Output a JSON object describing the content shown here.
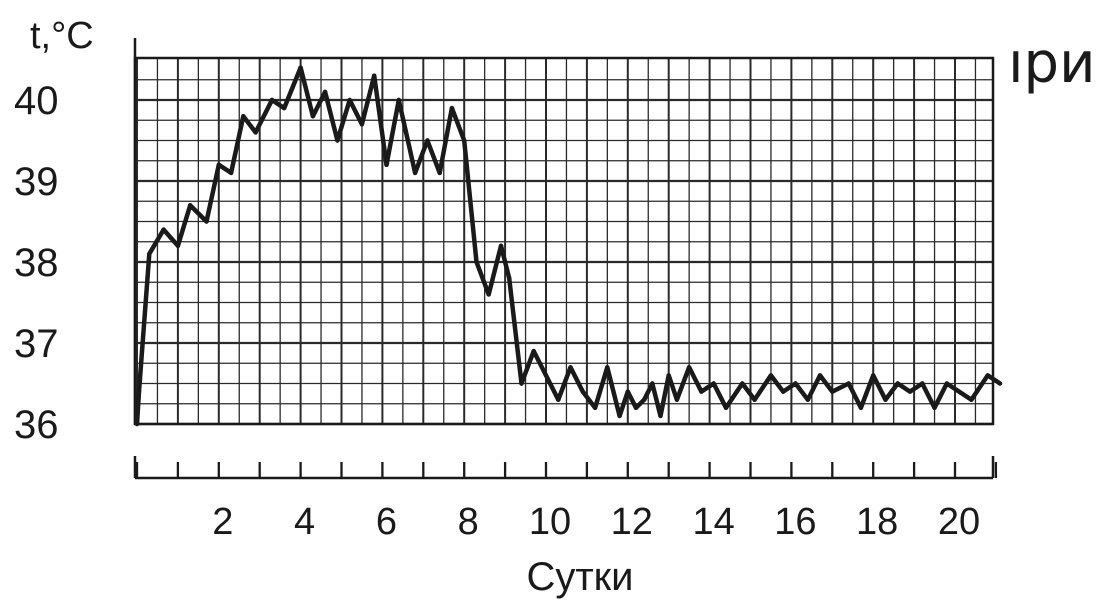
{
  "side_text": "ıри",
  "chart_data": {
    "type": "line",
    "ylabel": "t,°C",
    "xlabel": "Сутки",
    "xlim": [
      0,
      21.3
    ],
    "ylim": [
      36,
      40.4
    ],
    "x_ticks": [
      0,
      1,
      2,
      3,
      4,
      5,
      6,
      7,
      8,
      9,
      10,
      11,
      12,
      13,
      14,
      15,
      16,
      17,
      18,
      19,
      20,
      21
    ],
    "x_tick_labels": [
      "2",
      "4",
      "6",
      "8",
      "10",
      "12",
      "14",
      "16",
      "18",
      "20"
    ],
    "x_tick_label_values": [
      2,
      4,
      6,
      8,
      10,
      12,
      14,
      16,
      18,
      20
    ],
    "y_tick_labels": [
      "36",
      "37",
      "38",
      "39",
      "40"
    ],
    "y_tick_values": [
      36,
      37,
      38,
      39,
      40
    ],
    "grid": true,
    "series": [
      {
        "color": "#1a1a1a",
        "x": [
          0,
          0.05,
          0.3,
          0.65,
          1.0,
          1.3,
          1.7,
          2.0,
          2.3,
          2.6,
          2.9,
          3.3,
          3.6,
          4.0,
          4.3,
          4.6,
          4.9,
          5.2,
          5.5,
          5.8,
          6.1,
          6.4,
          6.8,
          7.1,
          7.4,
          7.7,
          8.0,
          8.3,
          8.6,
          8.9,
          9.1,
          9.4,
          9.7,
          10.0,
          10.3,
          10.6,
          10.9,
          11.2,
          11.5,
          11.8,
          12.0,
          12.2,
          12.4,
          12.6,
          12.8,
          13.0,
          13.2,
          13.5,
          13.8,
          14.1,
          14.4,
          14.8,
          15.1,
          15.5,
          15.8,
          16.1,
          16.4,
          16.7,
          17.0,
          17.4,
          17.7,
          18.0,
          18.3,
          18.6,
          18.9,
          19.2,
          19.5,
          19.8,
          20.1,
          20.4,
          20.8,
          21.1
        ],
        "y": [
          36.0,
          36.4,
          38.1,
          38.4,
          38.2,
          38.7,
          38.5,
          39.2,
          39.1,
          39.8,
          39.6,
          40.0,
          39.9,
          40.4,
          39.8,
          40.1,
          39.5,
          40.0,
          39.7,
          40.3,
          39.2,
          40.0,
          39.1,
          39.5,
          39.1,
          39.9,
          39.5,
          38.0,
          37.6,
          38.2,
          37.8,
          36.5,
          36.9,
          36.6,
          36.3,
          36.7,
          36.4,
          36.2,
          36.7,
          36.1,
          36.4,
          36.2,
          36.3,
          36.5,
          36.1,
          36.6,
          36.3,
          36.7,
          36.4,
          36.5,
          36.2,
          36.5,
          36.3,
          36.6,
          36.4,
          36.5,
          36.3,
          36.6,
          36.4,
          36.5,
          36.2,
          36.6,
          36.3,
          36.5,
          36.4,
          36.5,
          36.2,
          36.5,
          36.4,
          36.3,
          36.6,
          36.5
        ]
      }
    ]
  }
}
